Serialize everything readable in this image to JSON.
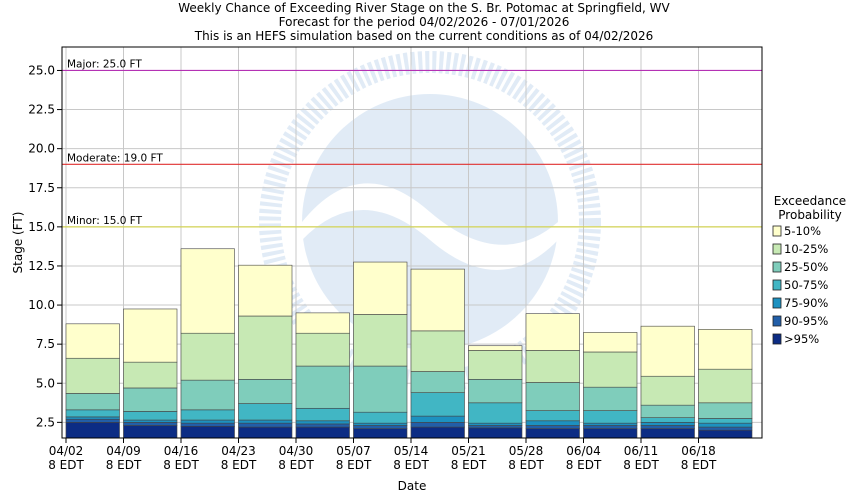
{
  "chart_data": {
    "type": "bar",
    "title_lines": [
      "Weekly Chance of Exceeding River Stage on the S. Br. Potomac at Springfield, WV",
      "Forecast for the period 04/02/2026 - 07/01/2026",
      "This is an HEFS simulation based on the current conditions as of 04/02/2026"
    ],
    "xlabel": "Date",
    "ylabel": "Stage (FT)",
    "ylim": [
      1.5,
      26.5
    ],
    "yticks": [
      "2.5",
      "5.0",
      "7.5",
      "10.0",
      "12.5",
      "15.0",
      "17.5",
      "20.0",
      "22.5",
      "25.0"
    ],
    "xtick_dates": [
      "04/02",
      "04/09",
      "04/16",
      "04/23",
      "04/30",
      "05/07",
      "05/14",
      "05/21",
      "05/28",
      "06/04",
      "06/11",
      "06/18"
    ],
    "xtick_sub": "8 EDT",
    "grid": true,
    "thresholds": [
      {
        "label": "Major: 25.0 FT",
        "value": 25.0,
        "color": "#b432b4"
      },
      {
        "label": "Moderate: 19.0 FT",
        "value": 19.0,
        "color": "#e03030"
      },
      {
        "label": "Minor: 15.0 FT",
        "value": 15.0,
        "color": "#d4d455"
      }
    ],
    "legend": {
      "title": [
        "Exceedance",
        "Probability"
      ],
      "placement": "right",
      "items": [
        {
          "label": "5-10%",
          "color": "#ffffcc"
        },
        {
          "label": "10-25%",
          "color": "#c7e9b4"
        },
        {
          "label": "25-50%",
          "color": "#7fcdbb"
        },
        {
          "label": "50-75%",
          "color": "#41b6c4"
        },
        {
          "label": "75-90%",
          "color": "#1d91c0"
        },
        {
          "label": "90-95%",
          "color": "#225ea8"
        },
        {
          "label": ">95%",
          "color": "#0c2c84"
        }
      ]
    },
    "bars": [
      {
        "week": "04/02",
        "levels": [
          2.5,
          2.7,
          2.85,
          3.3,
          4.35,
          6.6,
          8.8
        ]
      },
      {
        "week": "04/09",
        "levels": [
          2.3,
          2.5,
          2.65,
          3.2,
          4.7,
          6.35,
          9.75
        ]
      },
      {
        "week": "04/16",
        "levels": [
          2.25,
          2.45,
          2.65,
          3.3,
          5.2,
          8.2,
          13.6
        ]
      },
      {
        "week": "04/23",
        "levels": [
          2.2,
          2.45,
          2.65,
          3.7,
          5.25,
          9.3,
          12.55
        ]
      },
      {
        "week": "04/30",
        "levels": [
          2.2,
          2.4,
          2.6,
          3.4,
          6.1,
          8.2,
          9.5
        ]
      },
      {
        "week": "05/07",
        "levels": [
          2.1,
          2.3,
          2.45,
          3.15,
          6.1,
          9.4,
          12.75
        ]
      },
      {
        "week": "05/14",
        "levels": [
          2.2,
          2.5,
          2.9,
          4.4,
          5.75,
          8.35,
          12.3
        ]
      },
      {
        "week": "05/21",
        "levels": [
          2.15,
          2.3,
          2.45,
          3.75,
          5.25,
          7.1,
          7.4
        ]
      },
      {
        "week": "05/28",
        "levels": [
          2.1,
          2.3,
          2.6,
          3.25,
          5.05,
          7.1,
          9.45
        ]
      },
      {
        "week": "06/04",
        "levels": [
          2.1,
          2.3,
          2.45,
          3.25,
          4.75,
          7.0,
          8.25
        ]
      },
      {
        "week": "06/11",
        "levels": [
          2.1,
          2.3,
          2.5,
          2.8,
          3.6,
          5.45,
          8.65
        ]
      },
      {
        "week": "06/18",
        "levels": [
          2.0,
          2.2,
          2.45,
          2.75,
          3.75,
          5.9,
          8.45
        ]
      }
    ]
  }
}
